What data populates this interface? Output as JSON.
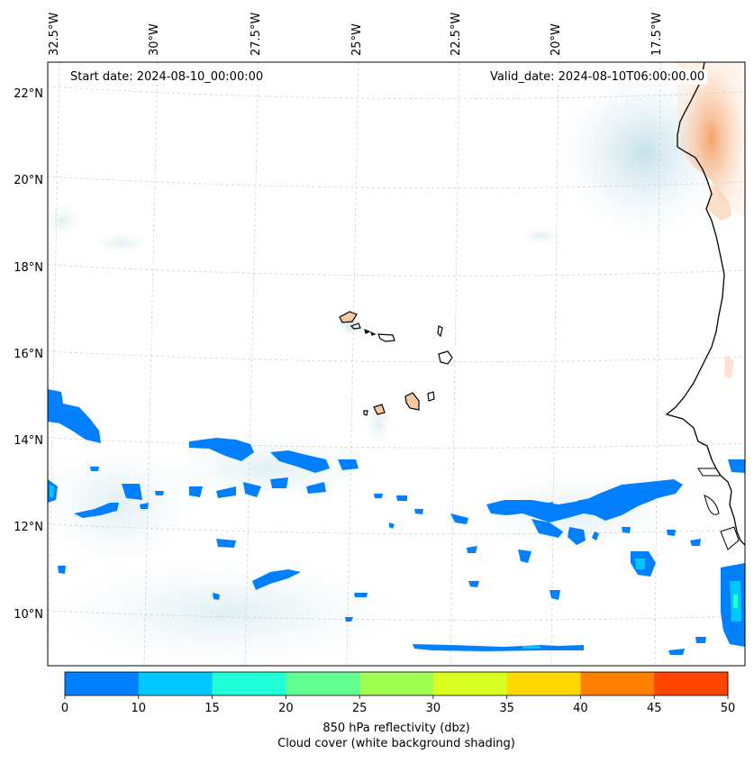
{
  "map": {
    "start_label": "Start date: 2024-08-10_00:00:00",
    "valid_label": "Valid_date: 2024-08-10T06:00:00.00",
    "lon_labels": [
      "32.5°W",
      "30°W",
      "27.5°W",
      "25°W",
      "22.5°W",
      "20°W",
      "17.5°W"
    ],
    "lat_labels": [
      "22°N",
      "20°N",
      "18°N",
      "16°N",
      "14°N",
      "12°N",
      "10°N"
    ]
  },
  "colorbar": {
    "ticks": [
      "0",
      "10",
      "15",
      "20",
      "25",
      "30",
      "35",
      "40",
      "45",
      "50"
    ],
    "colors": [
      "#0080ff",
      "#00c8ff",
      "#20ffd8",
      "#60ff90",
      "#a0ff50",
      "#d8ff20",
      "#ffd800",
      "#ff8000",
      "#ff4400"
    ],
    "label_line1": "850 hPa reflectivity (dbz)",
    "label_line2": "Cloud cover (white background shading)"
  },
  "theme": {
    "reflectivity_low": "#0080ff",
    "reflectivity_mid": "#20ffd8",
    "land_fill": "#f6c9a3",
    "cloud_shade": "#cfe6ee"
  }
}
